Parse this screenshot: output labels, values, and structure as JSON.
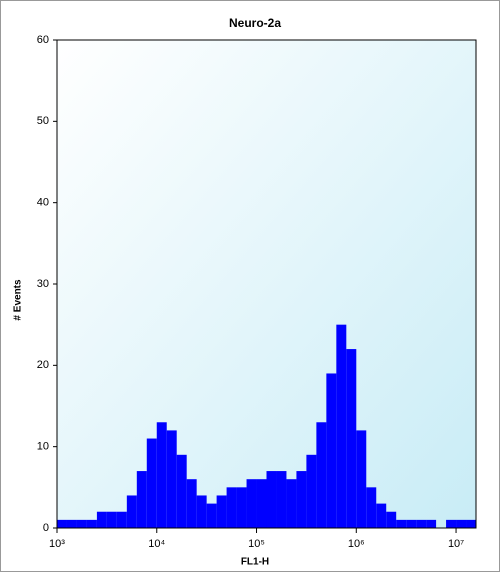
{
  "chart_data": {
    "type": "histogram",
    "title": "Neuro-2a",
    "x_label": "FL1-H",
    "y_label": "# Events",
    "bins": [
      1000,
      1259,
      1585,
      1995,
      2512,
      3162,
      3981,
      5012,
      6310,
      7943,
      10000,
      12589,
      15849,
      19953,
      25119,
      31623,
      39811,
      50119,
      63096,
      79433,
      100000,
      125893,
      158489,
      199526,
      251189,
      316228,
      398107,
      501187,
      630957,
      794328,
      1000000,
      1258925,
      1584893,
      1995262,
      2511886,
      3162278,
      3981072,
      5011872,
      6309573,
      7943282,
      10000000,
      12589254,
      15848932
    ],
    "values": [
      1,
      1,
      1,
      1,
      2,
      2,
      2,
      4,
      7,
      11,
      13,
      12,
      9,
      6,
      4,
      3,
      4,
      5,
      5,
      6,
      6,
      7,
      7,
      6,
      7,
      9,
      13,
      19,
      25,
      22,
      12,
      5,
      3,
      2,
      1,
      1,
      1,
      1,
      0,
      1,
      1,
      1
    ],
    "color": "#0000ff",
    "x_log": true,
    "xlim": [
      1000,
      15848932
    ],
    "xticks": [
      {
        "value": 1000,
        "label": "10³"
      },
      {
        "value": 10000,
        "label": "10⁴"
      },
      {
        "value": 100000,
        "label": "10⁵"
      },
      {
        "value": 1000000,
        "label": "10⁶"
      },
      {
        "value": 10000000,
        "label": "10⁷"
      }
    ],
    "ylim": [
      0,
      60
    ],
    "yticks": [
      0,
      10,
      20,
      30,
      40,
      50,
      60
    ]
  }
}
